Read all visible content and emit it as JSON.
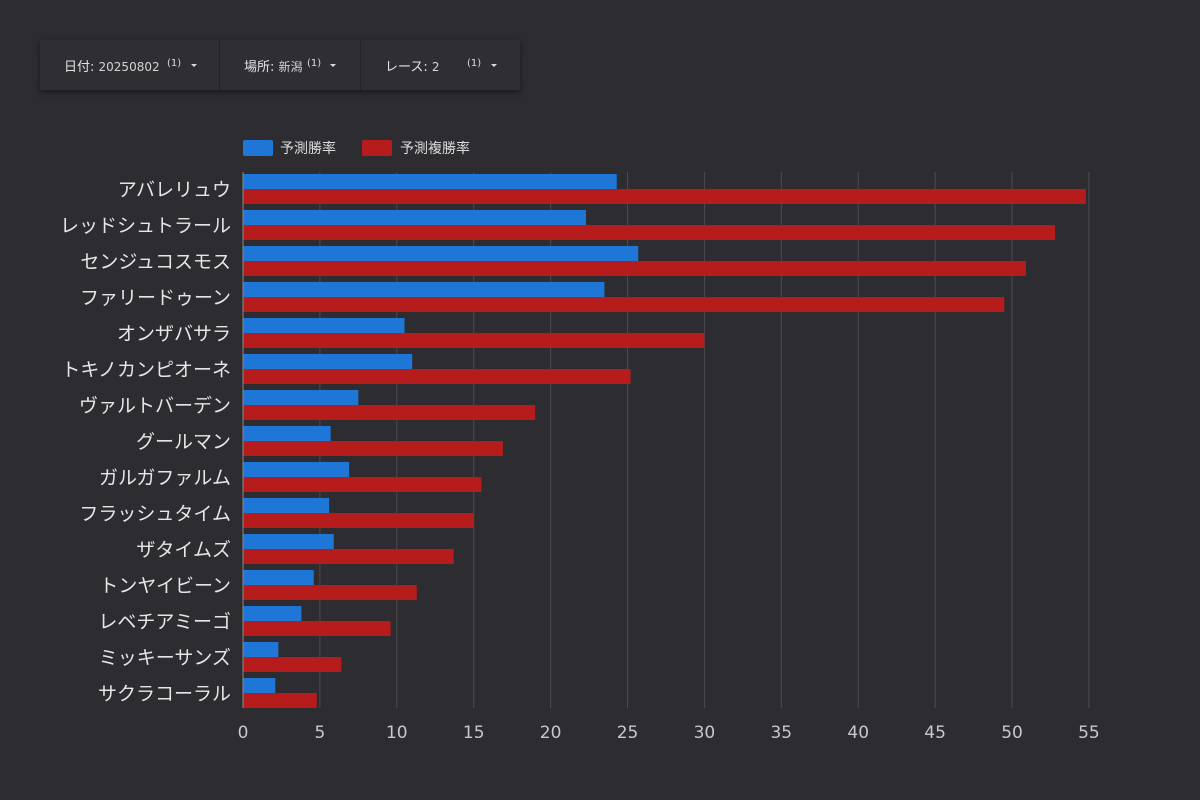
{
  "filters": [
    {
      "label": "日付",
      "value": "20250802",
      "count": "(1)"
    },
    {
      "label": "場所",
      "value": "新潟",
      "count": "(1)"
    },
    {
      "label": "レース",
      "value": "2",
      "count": "(1)"
    }
  ],
  "colors": {
    "win": "#1e77d6",
    "place": "#b61c1c",
    "grid": "#4c4b51",
    "background": "#2d2c31"
  },
  "chart_data": {
    "type": "bar",
    "orientation": "horizontal",
    "categories": [
      "アバレリュウ",
      "レッドシュトラール",
      "センジュコスモス",
      "ファリードゥーン",
      "オンザバサラ",
      "トキノカンピオーネ",
      "ヴァルトバーデン",
      "グールマン",
      "ガルガファルム",
      "フラッシュタイム",
      "ザタイムズ",
      "トンヤイビーン",
      "レベチアミーゴ",
      "ミッキーサンズ",
      "サクラコーラル"
    ],
    "series": [
      {
        "name": "予測勝率",
        "values": [
          24.3,
          22.3,
          25.7,
          23.5,
          10.5,
          11.0,
          7.5,
          5.7,
          6.9,
          5.6,
          5.9,
          4.6,
          3.8,
          2.3,
          2.1
        ]
      },
      {
        "name": "予測複勝率",
        "values": [
          54.8,
          52.8,
          50.9,
          49.5,
          30.0,
          25.2,
          19.0,
          16.9,
          15.5,
          15.0,
          13.7,
          11.3,
          9.6,
          6.4,
          4.8
        ]
      }
    ],
    "x_ticks": [
      0,
      5,
      10,
      15,
      20,
      25,
      30,
      35,
      40,
      45,
      50,
      55
    ],
    "xlim": [
      0,
      56.5
    ],
    "grid": true,
    "legend_position": "top-left"
  }
}
